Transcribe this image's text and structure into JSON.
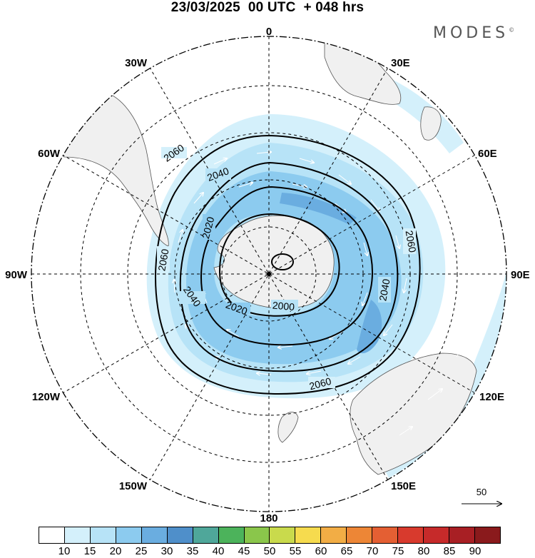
{
  "title": "23/03/2025  00 UTC  + 048 hrs",
  "brand": "MODES",
  "brand_mark": "©",
  "longitude_labels": {
    "0": "0",
    "30E": "30E",
    "60E": "60E",
    "90E": "90E",
    "120E": "120E",
    "150E": "150E",
    "180": "180",
    "150W": "150W",
    "120W": "120W",
    "90W": "90W",
    "60W": "60W",
    "30W": "30W"
  },
  "contour_labels": [
    "2060",
    "2040",
    "2020",
    "2000",
    "2060",
    "2040",
    "2060",
    "2040",
    "2020",
    "2060"
  ],
  "vector_reference": "50",
  "colorbar": {
    "colors": [
      "#ffffff",
      "#d4f0fb",
      "#b7e3f7",
      "#8ccbef",
      "#6aade0",
      "#4f8fca",
      "#4fa79a",
      "#4cb35b",
      "#8ac64b",
      "#c9da4c",
      "#f6db4e",
      "#f2ad45",
      "#ed8636",
      "#e45f33",
      "#d83a2d",
      "#c62a2a",
      "#a81f24",
      "#8a1a1c"
    ],
    "ticks": [
      "10",
      "15",
      "20",
      "25",
      "30",
      "35",
      "40",
      "45",
      "50",
      "55",
      "60",
      "65",
      "70",
      "75",
      "80",
      "85",
      "90"
    ]
  },
  "fill_colors": {
    "land": "#f0f0f0",
    "ocean": "#ffffff",
    "shade_15": "#d4f0fb",
    "shade_20": "#b7e3f7",
    "shade_25": "#8ccbef",
    "shade_30": "#6aade0"
  }
}
